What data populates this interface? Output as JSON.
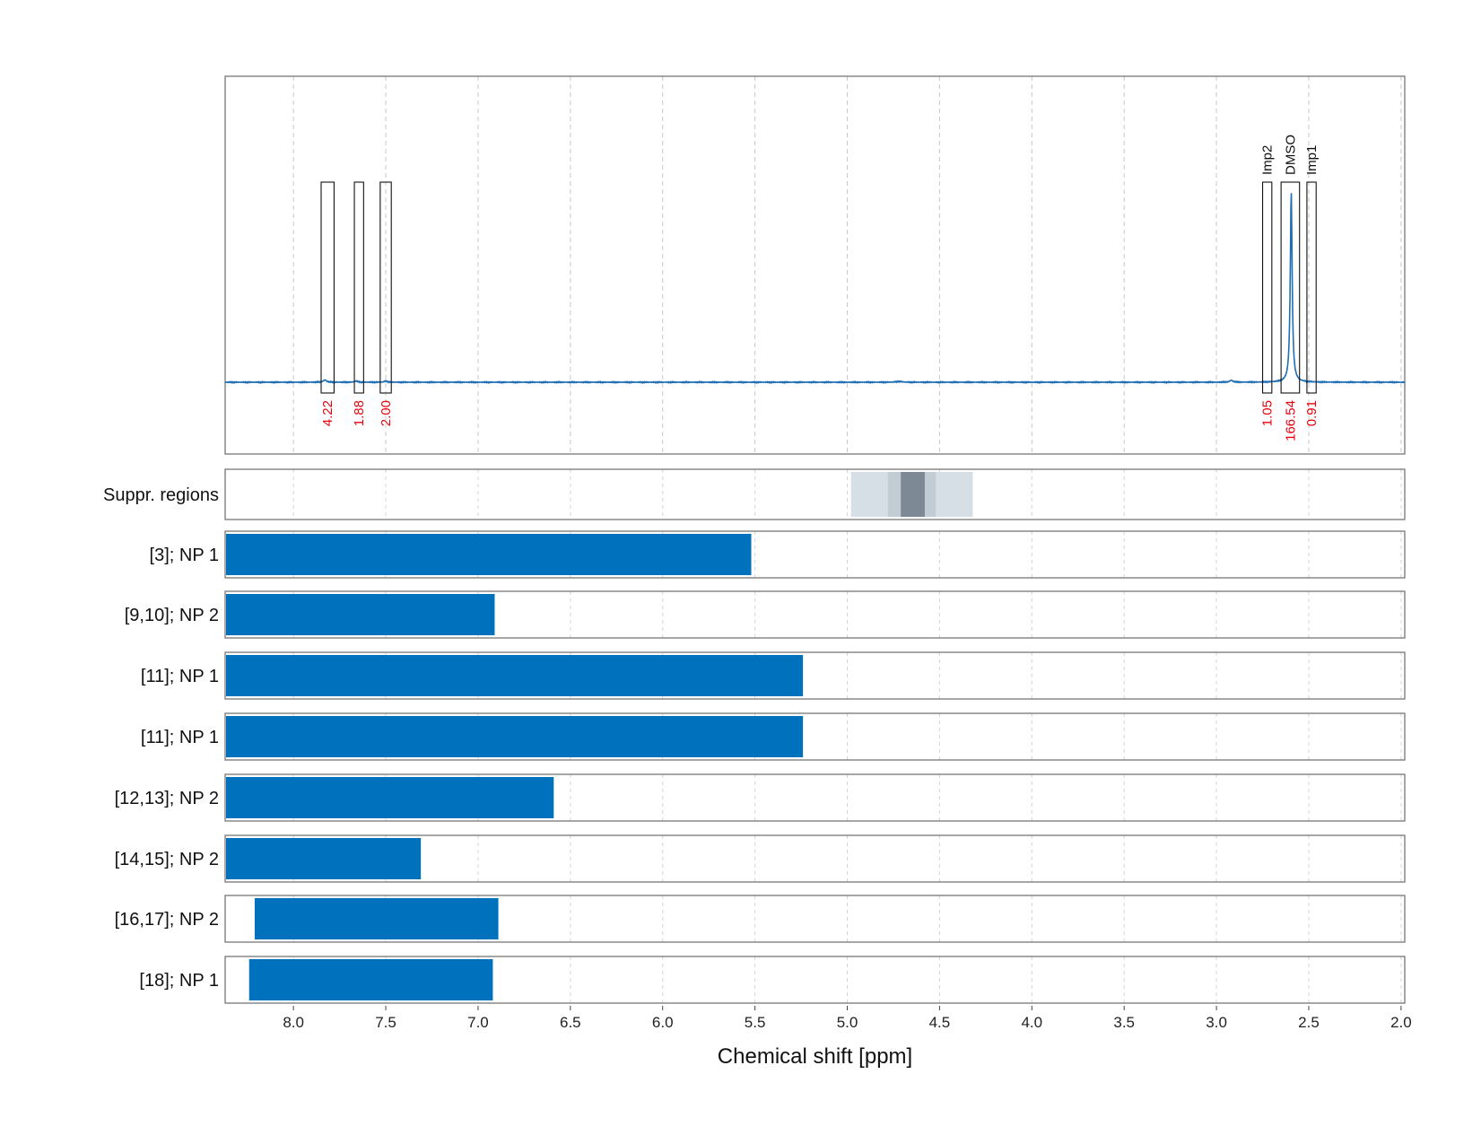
{
  "chart_data": {
    "type": "nmr-spectrum-with-range-bars",
    "xlabel": "Chemical shift [ppm]",
    "x_reversed": true,
    "xlim": [
      8.37,
      1.98
    ],
    "xticks": [
      8.0,
      7.5,
      7.0,
      6.5,
      6.0,
      5.5,
      5.0,
      4.5,
      4.0,
      3.5,
      3.0,
      2.5,
      2.0
    ],
    "xtick_labels": [
      "8.0",
      "7.5",
      "7.0",
      "6.5",
      "6.0",
      "5.5",
      "5.0",
      "4.5",
      "4.0",
      "3.5",
      "3.0",
      "2.5",
      "2.0"
    ],
    "grid": true,
    "spectrum": {
      "color": "#1f6fb4",
      "baseline": 0.0,
      "peaks": [
        {
          "center": 2.595,
          "height": 1.0,
          "width": 0.006
        },
        {
          "center": 7.83,
          "height": 0.012,
          "width": 0.01
        },
        {
          "center": 7.66,
          "height": 0.006,
          "width": 0.01
        },
        {
          "center": 7.5,
          "height": 0.006,
          "width": 0.01
        },
        {
          "center": 2.92,
          "height": 0.01,
          "width": 0.01
        },
        {
          "center": 4.72,
          "height": 0.004,
          "width": 0.02
        }
      ]
    },
    "integration_regions": [
      {
        "left": 7.85,
        "right": 7.78,
        "value": "4.22",
        "name": ""
      },
      {
        "left": 7.67,
        "right": 7.62,
        "value": "1.88",
        "name": ""
      },
      {
        "left": 7.53,
        "right": 7.47,
        "value": "2.00",
        "name": ""
      },
      {
        "left": 2.75,
        "right": 2.7,
        "value": "1.05",
        "name": "Imp2"
      },
      {
        "left": 2.65,
        "right": 2.55,
        "value": "166.54",
        "name": "DMSO"
      },
      {
        "left": 2.51,
        "right": 2.46,
        "value": "0.91",
        "name": "Imp1"
      }
    ],
    "value_color": "#e8000b",
    "suppression_label": "Suppr. regions",
    "suppression_bands": [
      {
        "left": 4.98,
        "right": 4.32,
        "shade": "#d7dfe6"
      },
      {
        "left": 4.78,
        "right": 4.52,
        "shade": "#c2ccd4"
      },
      {
        "left": 4.71,
        "right": 4.58,
        "shade": "#7d8a95"
      }
    ],
    "bar_color": "#0072bd",
    "rows": [
      {
        "label": "[3]; NP 1",
        "start": 8.37,
        "end": 5.52
      },
      {
        "label": "[9,10]; NP 2",
        "start": 8.37,
        "end": 6.91
      },
      {
        "label": "[11]; NP 1",
        "start": 8.37,
        "end": 5.24
      },
      {
        "label": "[11]; NP 1",
        "start": 8.37,
        "end": 5.24
      },
      {
        "label": "[12,13]; NP 2",
        "start": 8.37,
        "end": 6.59
      },
      {
        "label": "[14,15]; NP 2",
        "start": 8.37,
        "end": 7.31
      },
      {
        "label": "[16,17]; NP 2",
        "start": 8.21,
        "end": 6.89
      },
      {
        "label": "[18]; NP 1",
        "start": 8.24,
        "end": 6.92
      }
    ]
  }
}
